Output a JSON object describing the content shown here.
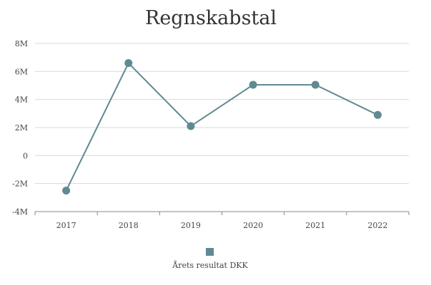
{
  "chart_data": {
    "type": "line",
    "title": "Regnskabstal",
    "x": [
      "2017",
      "2018",
      "2019",
      "2020",
      "2021",
      "2022"
    ],
    "series": [
      {
        "name": "Årets resultat DKK",
        "values": [
          -2500000,
          6600000,
          2100000,
          5050000,
          5050000,
          2900000
        ],
        "color": "#5f8a91"
      }
    ],
    "ylim": [
      -4000000,
      8000000
    ],
    "yticks": [
      {
        "value": 8000000,
        "label": "8M"
      },
      {
        "value": 6000000,
        "label": "6M"
      },
      {
        "value": 4000000,
        "label": "4M"
      },
      {
        "value": 2000000,
        "label": "2M"
      },
      {
        "value": 0,
        "label": "0"
      },
      {
        "value": -2000000,
        "label": "-2M"
      },
      {
        "value": -4000000,
        "label": "-4M"
      }
    ],
    "grid": true,
    "legend_position": "bottom"
  }
}
